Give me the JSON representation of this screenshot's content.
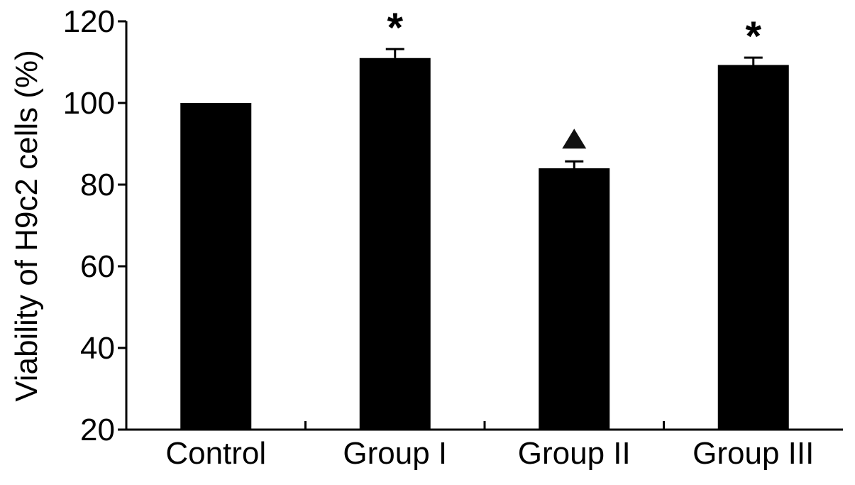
{
  "chart_data": {
    "type": "bar",
    "title": "",
    "xlabel": "",
    "ylabel": "Viability of H9c2 cells (%)",
    "categories": [
      "Control",
      "Group I",
      "Group II",
      "Group III"
    ],
    "values": [
      100,
      111,
      84,
      109.3
    ],
    "error": [
      0,
      2.2,
      1.7,
      1.8
    ],
    "annotations": [
      "",
      "*",
      "▲",
      "*"
    ],
    "ylim": [
      20,
      120
    ],
    "yticks": [
      "20",
      "40",
      "60",
      "80",
      "100",
      "120"
    ],
    "grid": false,
    "legend": "none",
    "colors": {
      "bar": "#000000",
      "axis": "#000000",
      "background": "#ffffff"
    }
  }
}
